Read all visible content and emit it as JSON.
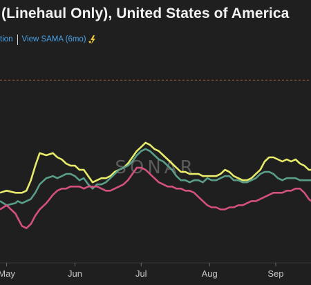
{
  "header": {
    "title": "(Linehaul Only), United States of America",
    "link_partial": "tion",
    "link_sama": "View SAMA (6mo)",
    "sama_icon": "lightning-hand-icon",
    "link_color": "#4aa3e8"
  },
  "watermark": "SONAR",
  "chart_data": {
    "type": "line",
    "title": "(Linehaul Only), United States of America",
    "xlabel": "",
    "ylabel": "",
    "ylim": [
      0,
      100
    ],
    "reference_line": 88,
    "grid": false,
    "x_tick_labels": [
      "May",
      "Jun",
      "Jul",
      "Aug",
      "Sep"
    ],
    "x_tick_positions": [
      13,
      44,
      74,
      105,
      135
    ],
    "xlim": [
      10,
      151
    ],
    "series": [
      {
        "color": "#e8ec6a",
        "x": [
          10,
          13,
          17,
          18,
          20,
          22,
          24,
          26,
          28,
          31,
          34,
          36,
          38,
          40,
          42,
          44,
          46,
          48,
          50,
          52,
          54,
          56,
          58,
          60,
          62,
          64,
          66,
          68,
          70,
          72,
          74,
          76,
          78,
          80,
          82,
          84,
          86,
          88,
          90,
          92,
          94,
          96,
          98,
          100,
          102,
          104,
          106,
          108,
          110,
          112,
          114,
          116,
          118,
          120,
          122,
          124,
          126,
          128,
          130,
          132,
          134,
          136,
          138,
          140,
          142,
          144,
          146,
          148,
          150,
          151
        ],
        "values": [
          34,
          35,
          34,
          34,
          34,
          35,
          40,
          47,
          53,
          52,
          53,
          51,
          50,
          48,
          47,
          47,
          45,
          45,
          42,
          39,
          40,
          41,
          41,
          42,
          44,
          45,
          46,
          48,
          51,
          54,
          56,
          58,
          57,
          55,
          54,
          52,
          50,
          48,
          46,
          44,
          44,
          43,
          43,
          43,
          42,
          42,
          42,
          42,
          43,
          45,
          44,
          42,
          41,
          40,
          40,
          41,
          43,
          45,
          49,
          51,
          51,
          50,
          49,
          50,
          49,
          50,
          48,
          47,
          45,
          45
        ]
      },
      {
        "color": "#5a9e8a",
        "x": [
          10,
          13,
          17,
          18,
          20,
          22,
          24,
          26,
          28,
          31,
          34,
          36,
          38,
          40,
          42,
          44,
          46,
          48,
          50,
          52,
          54,
          56,
          58,
          60,
          62,
          64,
          66,
          68,
          70,
          72,
          74,
          76,
          78,
          80,
          82,
          84,
          86,
          88,
          90,
          92,
          94,
          96,
          98,
          100,
          102,
          104,
          106,
          108,
          110,
          112,
          114,
          116,
          118,
          120,
          122,
          124,
          126,
          128,
          130,
          132,
          134,
          136,
          138,
          140,
          142,
          144,
          146,
          148,
          150,
          151
        ],
        "values": [
          30,
          28,
          29,
          30,
          29,
          30,
          31,
          34,
          38,
          41,
          42,
          41,
          42,
          43,
          43,
          42,
          40,
          41,
          38,
          36,
          38,
          38,
          39,
          41,
          43,
          45,
          46,
          47,
          49,
          52,
          54,
          55,
          54,
          52,
          50,
          49,
          47,
          45,
          42,
          40,
          40,
          39,
          40,
          40,
          39,
          41,
          40,
          40,
          41,
          42,
          42,
          40,
          40,
          39,
          39,
          40,
          41,
          43,
          44,
          44,
          43,
          41,
          40,
          41,
          41,
          41,
          40,
          40,
          40,
          40
        ]
      },
      {
        "color": "#d4517f",
        "x": [
          10,
          13,
          17,
          18,
          20,
          22,
          24,
          26,
          28,
          31,
          34,
          36,
          38,
          40,
          42,
          44,
          46,
          48,
          50,
          52,
          54,
          56,
          58,
          60,
          62,
          64,
          66,
          68,
          70,
          72,
          74,
          76,
          78,
          80,
          82,
          84,
          86,
          88,
          90,
          92,
          94,
          96,
          98,
          100,
          102,
          104,
          106,
          108,
          110,
          112,
          114,
          116,
          118,
          120,
          122,
          124,
          126,
          128,
          130,
          132,
          134,
          136,
          138,
          140,
          142,
          144,
          146,
          148,
          150,
          151
        ],
        "values": [
          26,
          28,
          24,
          22,
          18,
          17,
          19,
          23,
          26,
          29,
          33,
          35,
          36,
          36,
          37,
          37,
          37,
          36,
          37,
          37,
          37,
          36,
          35,
          35,
          36,
          37,
          38,
          40,
          43,
          46,
          46,
          45,
          43,
          41,
          39,
          38,
          37,
          37,
          36,
          36,
          35,
          35,
          34,
          32,
          30,
          28,
          27,
          27,
          26,
          26,
          27,
          27,
          28,
          28,
          29,
          30,
          30,
          31,
          32,
          33,
          34,
          34,
          34,
          35,
          35,
          36,
          36,
          34,
          31,
          30
        ]
      }
    ]
  }
}
